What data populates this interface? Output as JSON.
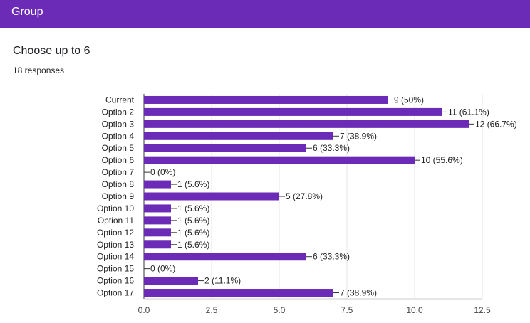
{
  "header": {
    "title": "Group"
  },
  "question": {
    "title": "Choose up to 6",
    "responses": "18 responses"
  },
  "colors": {
    "header": "#6c2bb7",
    "bar": "#6c2bb7",
    "grid": "#e6e6e6"
  },
  "chart_data": {
    "type": "bar",
    "orientation": "horizontal",
    "categories": [
      "Current",
      "Option 2",
      "Option 3",
      "Option 4",
      "Option 5",
      "Option 6",
      "Option 7",
      "Option 8",
      "Option 9",
      "Option 10",
      "Option 11",
      "Option 12",
      "Option 13",
      "Option 14",
      "Option 15",
      "Option 16",
      "Option 17"
    ],
    "values": [
      9,
      11,
      12,
      7,
      6,
      10,
      0,
      1,
      5,
      1,
      1,
      1,
      1,
      6,
      0,
      2,
      7
    ],
    "value_labels": [
      "9 (50%)",
      "11 (61.1%)",
      "12 (66.7%)",
      "7 (38.9%)",
      "6 (33.3%)",
      "10 (55.6%)",
      "0 (0%)",
      "1 (5.6%)",
      "5 (27.8%)",
      "1 (5.6%)",
      "1 (5.6%)",
      "1 (5.6%)",
      "1 (5.6%)",
      "6 (33.3%)",
      "0 (0%)",
      "2 (11.1%)",
      "7 (38.9%)"
    ],
    "xlim": [
      0,
      12.5
    ],
    "xticks": [
      "0.0",
      "2.5",
      "5.0",
      "7.5",
      "10.0",
      "12.5"
    ],
    "grid": true
  }
}
